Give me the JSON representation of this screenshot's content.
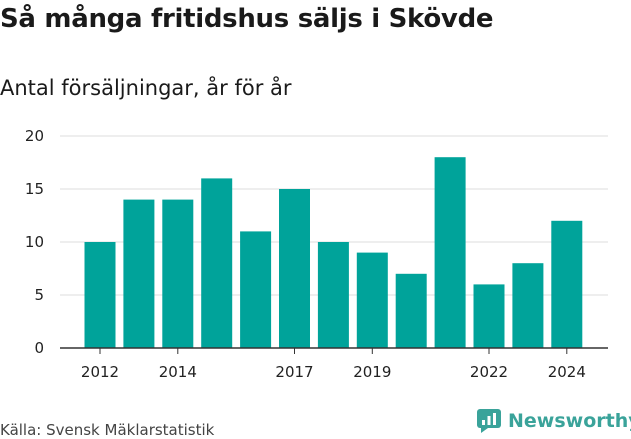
{
  "title": "Så många fritidshus säljs i Skövde",
  "subtitle": "Antal försäljningar, år för år",
  "source": "Källa: Svensk Mäklarstatistik",
  "brand": {
    "name": "Newsworthy",
    "color": "#3aa39a",
    "icon": "newsworthy-logo-icon"
  },
  "chart_data": {
    "type": "bar",
    "categories": [
      "2012",
      "2013",
      "2014",
      "2015",
      "2016",
      "2017",
      "2018",
      "2019",
      "2020",
      "2021",
      "2022",
      "2023",
      "2024"
    ],
    "values": [
      10,
      14,
      14,
      16,
      11,
      15,
      10,
      9,
      7,
      18,
      6,
      8,
      12
    ],
    "xticks": [
      "2012",
      "2014",
      "2017",
      "2019",
      "2022",
      "2024"
    ],
    "yticks": [
      0,
      5,
      10,
      15,
      20
    ],
    "ylim": [
      0,
      20
    ],
    "grid": true,
    "bar_color": "#00a39a",
    "grid_color": "#dddddd",
    "axis_color": "#333333"
  }
}
